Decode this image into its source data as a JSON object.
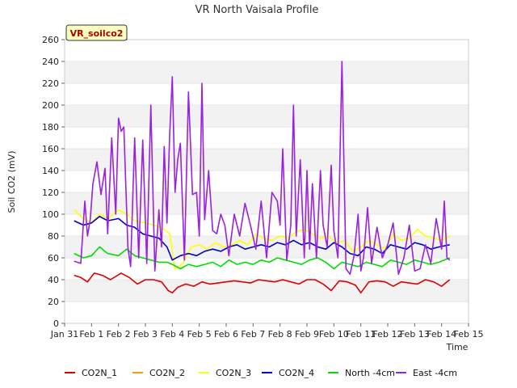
{
  "chart_data": {
    "type": "line",
    "title": "VR North Vaisala Profile",
    "xlabel": "Time",
    "ylabel": "Soil CO2 (mV)",
    "badge": "VR_soilco2",
    "ylim": [
      0,
      260
    ],
    "xlim": [
      0,
      15
    ],
    "yticks": [
      0,
      20,
      40,
      60,
      80,
      100,
      120,
      140,
      160,
      180,
      200,
      220,
      240,
      260
    ],
    "xticks": [
      {
        "x": 0,
        "label": "Jan 31"
      },
      {
        "x": 1,
        "label": "Feb 1"
      },
      {
        "x": 2,
        "label": "Feb 2"
      },
      {
        "x": 3,
        "label": "Feb 3"
      },
      {
        "x": 4,
        "label": "Feb 4"
      },
      {
        "x": 5,
        "label": "Feb 5"
      },
      {
        "x": 6,
        "label": "Feb 6"
      },
      {
        "x": 7,
        "label": "Feb 7"
      },
      {
        "x": 8,
        "label": "Feb 8"
      },
      {
        "x": 9,
        "label": "Feb 9"
      },
      {
        "x": 10,
        "label": "Feb 10"
      },
      {
        "x": 11,
        "label": "Feb 11"
      },
      {
        "x": 12,
        "label": "Feb 12"
      },
      {
        "x": 13,
        "label": "Feb 13"
      },
      {
        "x": 14,
        "label": "Feb 14"
      },
      {
        "x": 15,
        "label": "Feb 15"
      }
    ],
    "grid": "horizontal bands",
    "legend_position": "bottom",
    "series": [
      {
        "name": "CO2N_1",
        "color": "#dd0000",
        "x": [
          0.35,
          0.6,
          0.85,
          1.1,
          1.4,
          1.7,
          2.1,
          2.4,
          2.7,
          3.0,
          3.3,
          3.6,
          3.85,
          4.0,
          4.2,
          4.5,
          4.8,
          5.1,
          5.4,
          5.7,
          6.0,
          6.3,
          6.6,
          6.9,
          7.2,
          7.5,
          7.8,
          8.1,
          8.4,
          8.7,
          9.0,
          9.3,
          9.6,
          9.9,
          10.2,
          10.5,
          10.8,
          11.0,
          11.3,
          11.6,
          11.9,
          12.2,
          12.5,
          12.8,
          13.1,
          13.4,
          13.7,
          14.0,
          14.3
        ],
        "y": [
          44,
          42,
          38,
          46,
          44,
          40,
          46,
          42,
          36,
          40,
          40,
          38,
          30,
          28,
          33,
          36,
          34,
          38,
          36,
          37,
          38,
          39,
          38,
          37,
          40,
          39,
          38,
          40,
          38,
          36,
          40,
          40,
          36,
          30,
          39,
          38,
          35,
          28,
          38,
          39,
          38,
          34,
          38,
          37,
          36,
          40,
          38,
          34,
          40
        ]
      },
      {
        "name": "CO2N_2",
        "color": "#ff9900",
        "x": [
          0.35,
          14.3
        ],
        "y": [
          null,
          null
        ]
      },
      {
        "name": "CO2N_3",
        "color": "#ffff00",
        "x": [
          0.35,
          0.7,
          1.0,
          1.3,
          1.6,
          2.0,
          2.3,
          2.6,
          3.0,
          3.3,
          3.6,
          3.9,
          4.1,
          4.4,
          4.7,
          5.0,
          5.3,
          5.6,
          5.9,
          6.2,
          6.5,
          6.8,
          7.1,
          7.4,
          7.7,
          8.0,
          8.3,
          8.6,
          8.9,
          9.2,
          9.5,
          9.8,
          10.1,
          10.4,
          10.7,
          11.0,
          11.3,
          11.6,
          11.9,
          12.2,
          12.5,
          12.8,
          13.1,
          13.4,
          13.7,
          14.0,
          14.3
        ],
        "y": [
          104,
          96,
          92,
          100,
          96,
          104,
          100,
          94,
          92,
          90,
          88,
          82,
          50,
          55,
          70,
          72,
          68,
          74,
          70,
          72,
          76,
          72,
          82,
          78,
          76,
          80,
          78,
          84,
          86,
          82,
          78,
          80,
          74,
          76,
          66,
          70,
          76,
          72,
          68,
          82,
          76,
          78,
          86,
          80,
          78,
          76,
          80
        ]
      },
      {
        "name": "CO2N_4",
        "color": "#0000cc",
        "x": [
          0.35,
          0.7,
          1.0,
          1.3,
          1.6,
          2.0,
          2.3,
          2.6,
          2.9,
          3.2,
          3.5,
          3.8,
          4.0,
          4.3,
          4.6,
          4.9,
          5.2,
          5.5,
          5.8,
          6.1,
          6.4,
          6.7,
          7.0,
          7.3,
          7.6,
          7.9,
          8.2,
          8.5,
          8.8,
          9.1,
          9.4,
          9.7,
          10.0,
          10.3,
          10.6,
          10.9,
          11.2,
          11.5,
          11.8,
          12.1,
          12.4,
          12.7,
          13.0,
          13.3,
          13.6,
          13.9,
          14.3
        ],
        "y": [
          94,
          90,
          92,
          98,
          94,
          96,
          90,
          88,
          82,
          80,
          78,
          70,
          58,
          62,
          64,
          62,
          66,
          68,
          66,
          70,
          72,
          68,
          70,
          72,
          70,
          74,
          72,
          76,
          72,
          74,
          70,
          68,
          74,
          70,
          64,
          62,
          70,
          68,
          64,
          72,
          70,
          68,
          74,
          72,
          68,
          70,
          72
        ]
      },
      {
        "name": "North -4cm",
        "color": "#00dd00",
        "x": [
          0.35,
          0.7,
          1.0,
          1.3,
          1.6,
          2.0,
          2.3,
          2.6,
          2.9,
          3.2,
          3.5,
          3.8,
          4.0,
          4.3,
          4.6,
          4.9,
          5.2,
          5.5,
          5.8,
          6.1,
          6.4,
          6.7,
          7.0,
          7.3,
          7.6,
          7.9,
          8.2,
          8.5,
          8.8,
          9.1,
          9.4,
          9.7,
          10.0,
          10.3,
          10.6,
          10.9,
          11.2,
          11.5,
          11.8,
          12.1,
          12.4,
          12.7,
          13.0,
          13.3,
          13.6,
          13.9,
          14.3
        ],
        "y": [
          64,
          60,
          62,
          70,
          64,
          62,
          68,
          62,
          60,
          58,
          56,
          56,
          54,
          50,
          54,
          52,
          54,
          56,
          52,
          58,
          54,
          56,
          54,
          58,
          56,
          60,
          58,
          56,
          54,
          58,
          60,
          56,
          50,
          56,
          54,
          52,
          56,
          54,
          52,
          58,
          56,
          54,
          58,
          56,
          54,
          56,
          60
        ]
      },
      {
        "name": "East -4cm",
        "color": "#9922dd",
        "x": [
          0.35,
          0.6,
          0.75,
          0.85,
          0.95,
          1.05,
          1.2,
          1.35,
          1.5,
          1.6,
          1.75,
          1.9,
          2.0,
          2.1,
          2.2,
          2.35,
          2.45,
          2.6,
          2.75,
          2.9,
          3.05,
          3.2,
          3.35,
          3.5,
          3.6,
          3.7,
          3.8,
          3.9,
          4.0,
          4.1,
          4.2,
          4.3,
          4.45,
          4.6,
          4.75,
          4.9,
          5.0,
          5.1,
          5.2,
          5.35,
          5.5,
          5.65,
          5.8,
          5.95,
          6.1,
          6.3,
          6.5,
          6.7,
          6.9,
          7.1,
          7.3,
          7.5,
          7.7,
          7.9,
          8.0,
          8.1,
          8.25,
          8.4,
          8.5,
          8.6,
          8.75,
          8.9,
          9.0,
          9.1,
          9.2,
          9.35,
          9.5,
          9.6,
          9.75,
          9.9,
          10.0,
          10.15,
          10.3,
          10.45,
          10.6,
          10.75,
          10.9,
          11.0,
          11.1,
          11.25,
          11.4,
          11.6,
          11.8,
          12.0,
          12.2,
          12.4,
          12.6,
          12.8,
          13.0,
          13.2,
          13.4,
          13.6,
          13.8,
          14.0,
          14.1,
          14.2,
          14.3
        ],
        "y": [
          57,
          55,
          112,
          80,
          95,
          128,
          148,
          118,
          142,
          82,
          170,
          100,
          188,
          176,
          180,
          70,
          52,
          170,
          60,
          168,
          55,
          200,
          48,
          104,
          70,
          162,
          92,
          172,
          226,
          120,
          150,
          165,
          58,
          212,
          118,
          120,
          80,
          220,
          95,
          140,
          85,
          82,
          100,
          90,
          62,
          100,
          80,
          110,
          90,
          68,
          112,
          60,
          120,
          112,
          90,
          160,
          58,
          90,
          200,
          80,
          150,
          60,
          140,
          68,
          128,
          60,
          140,
          90,
          70,
          145,
          85,
          60,
          240,
          50,
          45,
          62,
          100,
          48,
          60,
          106,
          55,
          88,
          60,
          72,
          92,
          45,
          60,
          90,
          48,
          50,
          72,
          55,
          96,
          68,
          112,
          60,
          58
        ]
      }
    ]
  }
}
